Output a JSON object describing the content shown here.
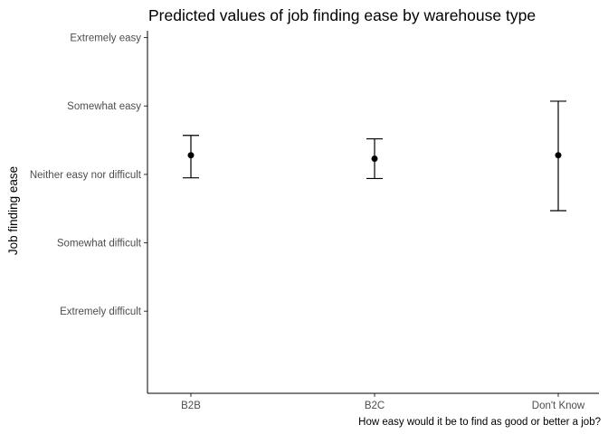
{
  "chart_data": {
    "type": "scatter",
    "title": "Predicted values of job finding ease by warehouse type",
    "xlabel": "How easy would it be to find as good or better a job?",
    "ylabel": "Job finding ease",
    "categories": [
      "B2B",
      "B2C",
      "Don't Know"
    ],
    "y_ticks": [
      {
        "value": 1,
        "label": "Extremely difficult"
      },
      {
        "value": 2,
        "label": "Somewhat difficult"
      },
      {
        "value": 3,
        "label": "Neither easy nor difficult"
      },
      {
        "value": 4,
        "label": "Somewhat easy"
      },
      {
        "value": 5,
        "label": "Extremely easy"
      }
    ],
    "ylim": [
      -0.2,
      5.1
    ],
    "series": [
      {
        "estimate": [
          3.28,
          3.23,
          3.28
        ],
        "ci_low": [
          2.95,
          2.94,
          2.47
        ],
        "ci_high": [
          3.57,
          3.52,
          4.07
        ]
      }
    ],
    "grid": false,
    "color": "#000000"
  }
}
